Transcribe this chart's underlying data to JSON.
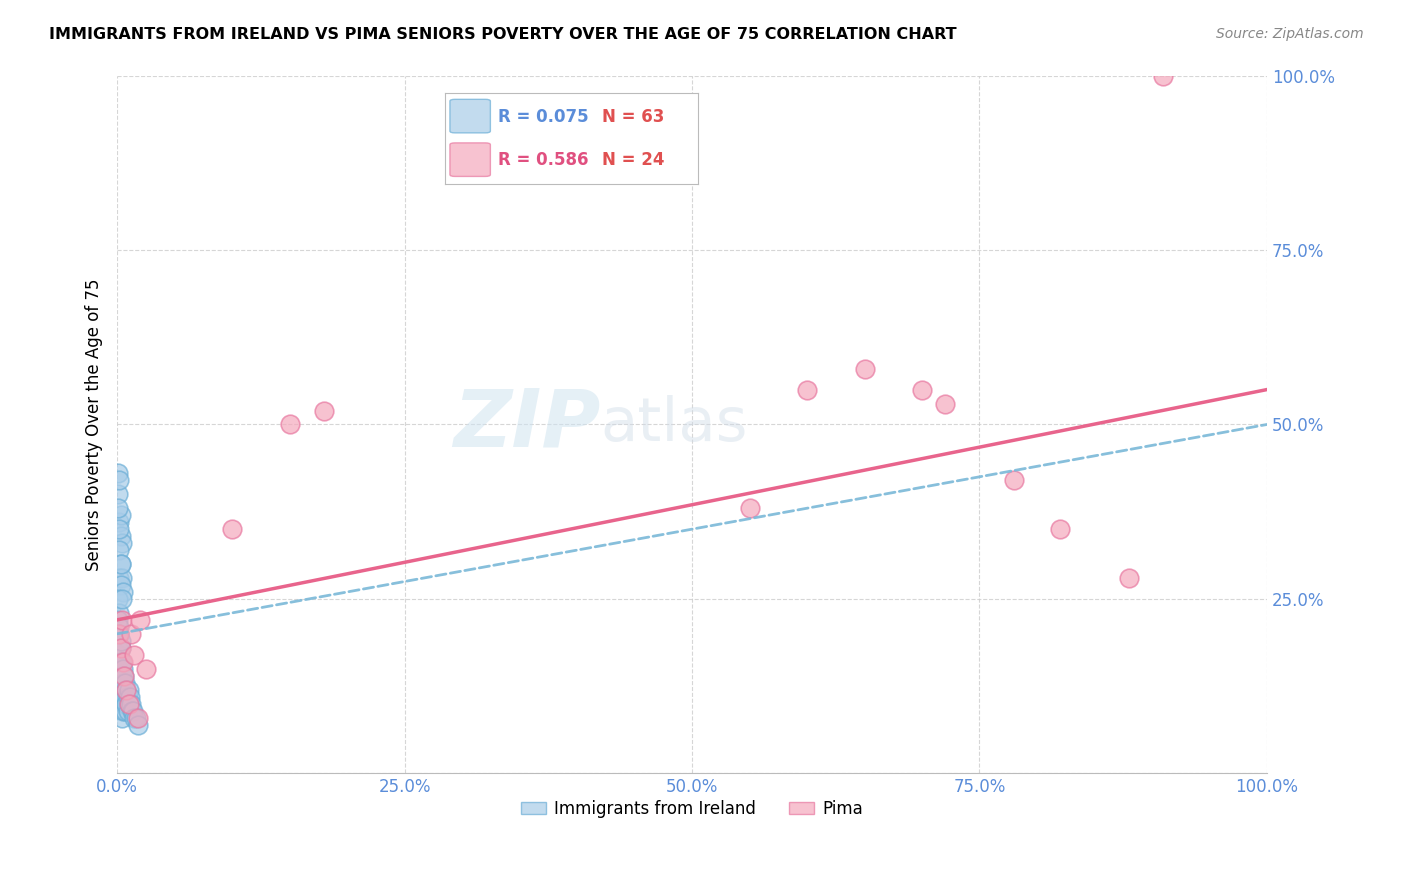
{
  "title": "IMMIGRANTS FROM IRELAND VS PIMA SENIORS POVERTY OVER THE AGE OF 75 CORRELATION CHART",
  "source": "Source: ZipAtlas.com",
  "ylabel": "Seniors Poverty Over the Age of 75",
  "blue_color": "#a8cce8",
  "pink_color": "#f4a8bc",
  "blue_edge_color": "#6baed6",
  "pink_edge_color": "#e878a0",
  "blue_line_color": "#7ab8d8",
  "pink_line_color": "#e8648c",
  "blue_R": 0.075,
  "blue_N": 63,
  "pink_R": 0.586,
  "pink_N": 24,
  "watermark_zip": "ZIP",
  "watermark_atlas": "atlas",
  "legend_label_blue": "Immigrants from Ireland",
  "legend_label_pink": "Pima",
  "xlim": [
    0.0,
    1.0
  ],
  "ylim": [
    0.0,
    1.0
  ],
  "xticks": [
    0.0,
    0.25,
    0.5,
    0.75,
    1.0
  ],
  "yticks": [
    0.0,
    0.25,
    0.5,
    0.75,
    1.0
  ],
  "xtick_labels": [
    "0.0%",
    "25.0%",
    "50.0%",
    "75.0%",
    "100.0%"
  ],
  "ytick_labels": [
    "",
    "25.0%",
    "50.0%",
    "75.0%",
    "100.0%"
  ],
  "blue_x": [
    0.001,
    0.001,
    0.001,
    0.002,
    0.002,
    0.002,
    0.002,
    0.002,
    0.003,
    0.003,
    0.003,
    0.003,
    0.003,
    0.004,
    0.004,
    0.004,
    0.004,
    0.005,
    0.005,
    0.005,
    0.005,
    0.006,
    0.006,
    0.006,
    0.007,
    0.007,
    0.007,
    0.008,
    0.008,
    0.009,
    0.009,
    0.01,
    0.01,
    0.011,
    0.012,
    0.013,
    0.014,
    0.015,
    0.016,
    0.018,
    0.002,
    0.003,
    0.003,
    0.004,
    0.002,
    0.003,
    0.002,
    0.004,
    0.003,
    0.005,
    0.001,
    0.002,
    0.001,
    0.002,
    0.002,
    0.003,
    0.001,
    0.001,
    0.002,
    0.003,
    0.004,
    0.001,
    0.002
  ],
  "blue_y": [
    0.18,
    0.15,
    0.12,
    0.2,
    0.17,
    0.15,
    0.12,
    0.1,
    0.18,
    0.16,
    0.14,
    0.12,
    0.1,
    0.16,
    0.14,
    0.12,
    0.08,
    0.15,
    0.13,
    0.11,
    0.09,
    0.14,
    0.12,
    0.1,
    0.13,
    0.11,
    0.09,
    0.12,
    0.1,
    0.11,
    0.09,
    0.12,
    0.1,
    0.11,
    0.1,
    0.09,
    0.09,
    0.08,
    0.08,
    0.07,
    0.36,
    0.37,
    0.34,
    0.33,
    0.32,
    0.3,
    0.28,
    0.28,
    0.27,
    0.26,
    0.25,
    0.23,
    0.22,
    0.21,
    0.2,
    0.19,
    0.4,
    0.38,
    0.35,
    0.3,
    0.25,
    0.43,
    0.42
  ],
  "pink_x": [
    0.002,
    0.003,
    0.004,
    0.005,
    0.006,
    0.008,
    0.01,
    0.012,
    0.015,
    0.018,
    0.02,
    0.025,
    0.1,
    0.15,
    0.18,
    0.55,
    0.6,
    0.65,
    0.7,
    0.72,
    0.78,
    0.82,
    0.88,
    0.91
  ],
  "pink_y": [
    0.2,
    0.18,
    0.22,
    0.16,
    0.14,
    0.12,
    0.1,
    0.2,
    0.17,
    0.08,
    0.22,
    0.15,
    0.35,
    0.5,
    0.52,
    0.38,
    0.55,
    0.58,
    0.55,
    0.53,
    0.42,
    0.35,
    0.28,
    1.0
  ],
  "blue_line_x0": 0.0,
  "blue_line_y0": 0.2,
  "blue_line_x1": 1.0,
  "blue_line_y1": 0.5,
  "pink_line_x0": 0.0,
  "pink_line_y0": 0.22,
  "pink_line_x1": 1.0,
  "pink_line_y1": 0.55
}
